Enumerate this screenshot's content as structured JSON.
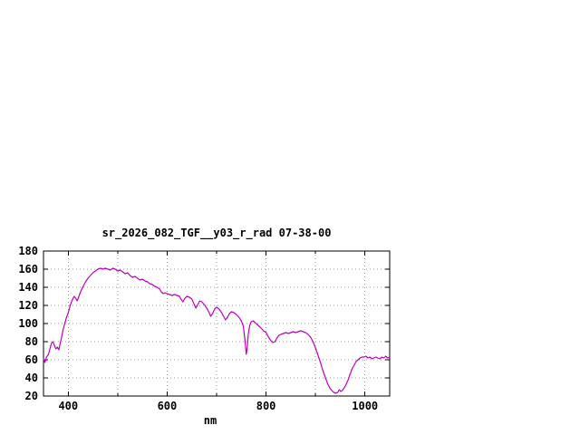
{
  "chart_data": {
    "type": "line",
    "title": "sr_2026_082_TGF__y03_r_rad 07-38-00",
    "xlabel": "nm",
    "ylabel": "",
    "xlim": [
      350,
      1050
    ],
    "ylim": [
      20,
      180
    ],
    "xticks": [
      400,
      600,
      800,
      1000
    ],
    "xgrid": [
      400,
      500,
      600,
      700,
      800,
      900,
      1000
    ],
    "yticks": [
      20,
      40,
      60,
      80,
      100,
      120,
      140,
      160,
      180
    ],
    "ygrid": [
      40,
      60,
      80,
      100,
      120,
      140,
      160
    ],
    "grid": true,
    "legend": "none",
    "line_color": "#c000c0",
    "x": [
      350,
      353,
      356,
      360,
      363,
      366,
      369,
      372,
      375,
      378,
      381,
      384,
      387,
      390,
      393,
      396,
      400,
      404,
      408,
      412,
      415,
      418,
      421,
      425,
      430,
      435,
      440,
      445,
      450,
      455,
      460,
      465,
      470,
      475,
      480,
      485,
      490,
      495,
      500,
      505,
      510,
      515,
      520,
      525,
      530,
      535,
      540,
      545,
      550,
      555,
      560,
      565,
      570,
      575,
      580,
      585,
      588,
      592,
      596,
      600,
      605,
      610,
      615,
      620,
      625,
      628,
      632,
      636,
      640,
      645,
      650,
      654,
      658,
      662,
      666,
      670,
      675,
      680,
      685,
      688,
      692,
      696,
      700,
      705,
      710,
      715,
      718,
      722,
      726,
      730,
      735,
      740,
      745,
      750,
      754,
      758,
      760,
      762,
      764,
      767,
      770,
      774,
      778,
      782,
      786,
      790,
      795,
      800,
      805,
      810,
      814,
      818,
      822,
      826,
      830,
      835,
      840,
      845,
      850,
      855,
      860,
      865,
      870,
      875,
      880,
      885,
      890,
      895,
      900,
      905,
      910,
      915,
      920,
      925,
      930,
      935,
      940,
      945,
      948,
      951,
      954,
      958,
      962,
      966,
      970,
      974,
      978,
      982,
      986,
      990,
      994,
      998,
      1002,
      1006,
      1010,
      1014,
      1018,
      1022,
      1026,
      1030,
      1034,
      1038,
      1042,
      1046,
      1050
    ],
    "y": [
      61,
      57,
      63,
      66,
      72,
      78,
      80,
      76,
      72,
      74,
      71,
      79,
      86,
      94,
      100,
      106,
      112,
      120,
      126,
      130,
      128,
      125,
      129,
      135,
      141,
      146,
      150,
      153,
      156,
      158,
      160,
      161,
      160,
      161,
      160,
      159,
      161,
      160,
      158,
      159,
      157,
      155,
      156,
      153,
      151,
      152,
      150,
      148,
      149,
      147,
      146,
      144,
      143,
      141,
      140,
      138,
      135,
      133,
      134,
      133,
      132,
      131,
      132,
      131,
      130,
      127,
      124,
      128,
      130,
      129,
      127,
      122,
      117,
      121,
      125,
      124,
      121,
      117,
      112,
      108,
      111,
      116,
      118,
      116,
      112,
      107,
      104,
      107,
      111,
      113,
      112,
      110,
      107,
      103,
      97,
      78,
      66,
      73,
      88,
      98,
      102,
      103,
      101,
      99,
      97,
      95,
      92,
      90,
      85,
      81,
      79,
      80,
      84,
      87,
      88,
      89,
      90,
      89,
      90,
      91,
      90,
      91,
      92,
      91,
      90,
      88,
      85,
      80,
      73,
      65,
      57,
      48,
      40,
      33,
      28,
      25,
      23,
      24,
      27,
      25,
      26,
      29,
      33,
      38,
      44,
      50,
      54,
      58,
      60,
      62,
      63,
      63,
      64,
      62,
      63,
      61,
      62,
      63,
      62,
      61,
      63,
      62,
      64,
      62,
      63
    ]
  },
  "colors": {
    "line": "#c000c0",
    "grid": "#9a9a9a",
    "frame": "#000000",
    "text": "#000000",
    "background": "#ffffff"
  }
}
